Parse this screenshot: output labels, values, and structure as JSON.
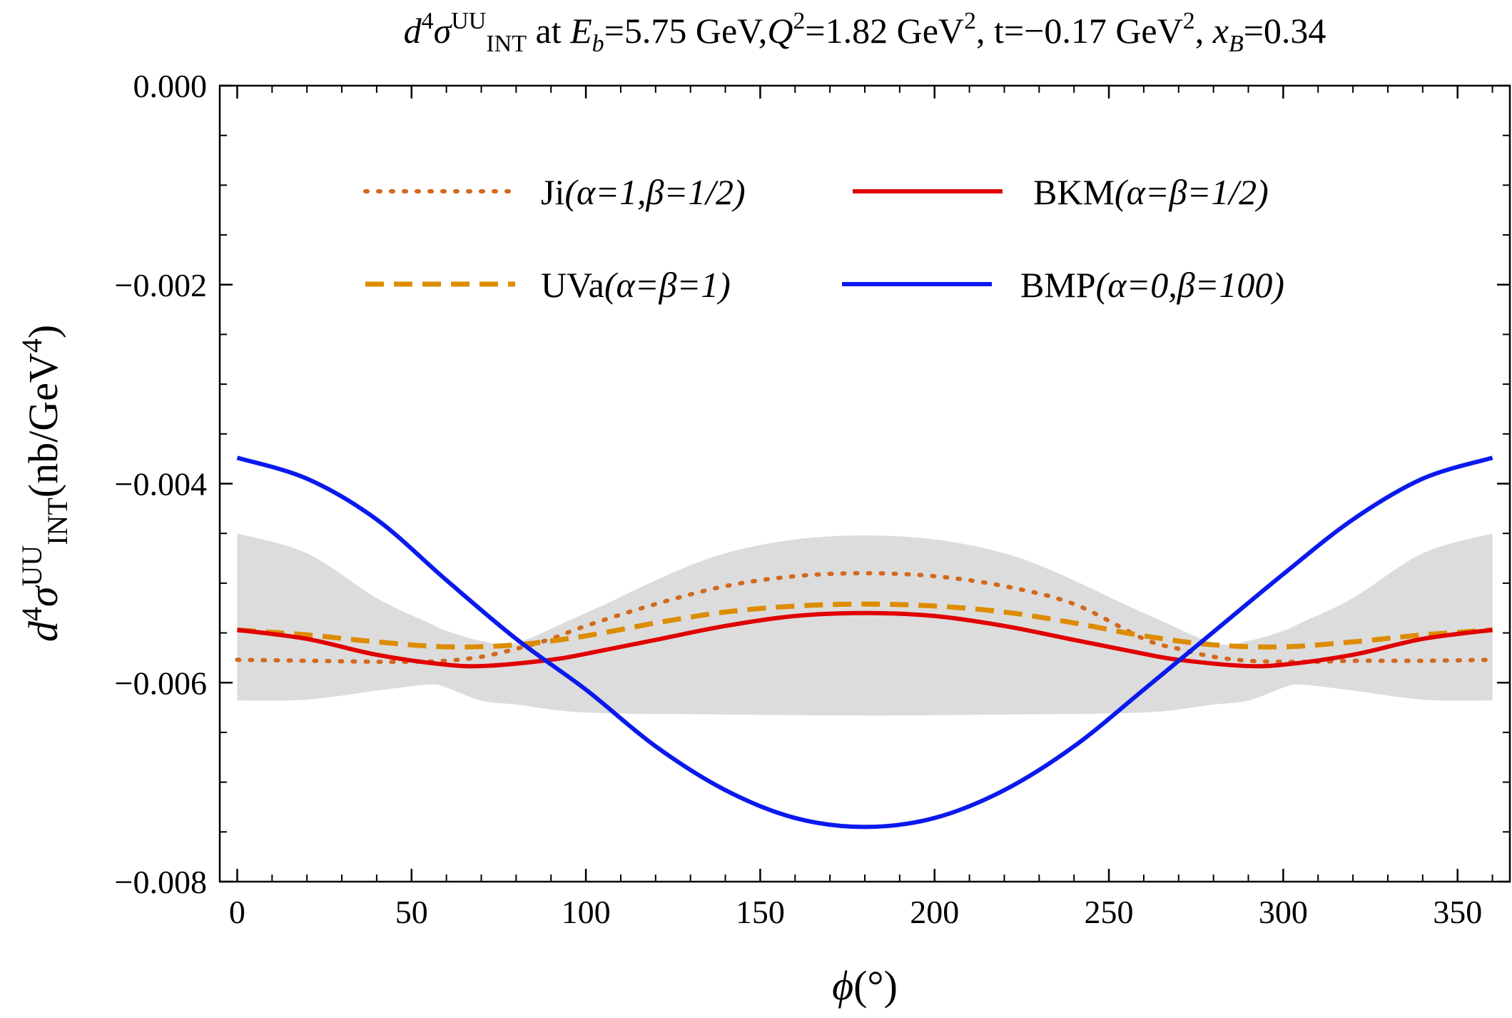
{
  "chart_data": {
    "type": "line",
    "title": {
      "prefix": "d",
      "prefix_sup": "4",
      "sigma": "σ",
      "sigma_sup": "UU",
      "sigma_sub": "INT",
      "text1": " at ",
      "eb_var": "E",
      "eb_sub": "b",
      "text2": "=5.75 GeV,",
      "q_var": "Q",
      "q_sup": "2",
      "text3": "=1.82 GeV",
      "gev_sup1": "2",
      "text4": ", t=−0.17 GeV",
      "gev_sup2": "2",
      "text5": ", ",
      "x_var": "x",
      "x_sub": "B",
      "text6": "=0.34"
    },
    "xlabel": {
      "symbol": "ϕ",
      "unit": "(°)"
    },
    "ylabel": {
      "prefix": "d",
      "prefix_sup": "4",
      "sigma": "σ",
      "sigma_sup": "UU",
      "sigma_sub": "INT",
      "unit": "(nb/GeV",
      "unit_sup": "4",
      "unit_close": ")"
    },
    "xlim": [
      -5,
      365
    ],
    "ylim": [
      -0.008,
      0
    ],
    "xticks": [
      0,
      50,
      100,
      150,
      200,
      250,
      300,
      350
    ],
    "xtick_labels": [
      "0",
      "50",
      "100",
      "150",
      "200",
      "250",
      "300",
      "350"
    ],
    "yticks": [
      0,
      -0.002,
      -0.004,
      -0.006,
      -0.008
    ],
    "ytick_labels": [
      "0.000",
      "−0.002",
      "−0.004",
      "−0.006",
      "−0.008"
    ],
    "band": {
      "color": "#dcdcdc",
      "x": [
        0,
        20,
        40,
        55,
        60,
        70,
        80,
        100,
        140,
        180,
        220,
        260,
        280,
        290,
        300,
        305,
        320,
        340,
        360
      ],
      "upper": [
        -0.0045,
        -0.0047,
        -0.00515,
        -0.0054,
        -0.00548,
        -0.00558,
        -0.0056,
        -0.0053,
        -0.0047,
        -0.00452,
        -0.0047,
        -0.0053,
        -0.0056,
        -0.00558,
        -0.00548,
        -0.0054,
        -0.00515,
        -0.0047,
        -0.0045
      ],
      "lower": [
        -0.00618,
        -0.00617,
        -0.00608,
        -0.00602,
        -0.00605,
        -0.00618,
        -0.00622,
        -0.0063,
        -0.00632,
        -0.00633,
        -0.00632,
        -0.0063,
        -0.00622,
        -0.00618,
        -0.00605,
        -0.00602,
        -0.00608,
        -0.00617,
        -0.00618
      ]
    },
    "series": [
      {
        "name": "Ji",
        "params": "(α=1,β=1/2)",
        "color": "#d2691e",
        "dash": "dotted",
        "x": [
          0,
          20,
          40,
          50,
          60,
          70,
          80,
          90,
          100,
          120,
          140,
          160,
          180,
          200,
          220,
          240,
          260,
          270,
          280,
          290,
          300,
          310,
          320,
          340,
          360
        ],
        "y": [
          -0.00577,
          -0.00578,
          -0.00579,
          -0.00579,
          -0.00578,
          -0.00574,
          -0.00566,
          -0.00556,
          -0.00543,
          -0.00521,
          -0.00503,
          -0.00493,
          -0.0049,
          -0.00493,
          -0.00503,
          -0.00521,
          -0.00556,
          -0.00566,
          -0.00574,
          -0.00578,
          -0.00579,
          -0.00579,
          -0.00578,
          -0.00578,
          -0.00577
        ]
      },
      {
        "name": "UVa",
        "params": "(α=β=1)",
        "color": "#dd8c00",
        "dash": "dashed",
        "x": [
          0,
          20,
          40,
          60,
          80,
          100,
          120,
          140,
          160,
          180,
          200,
          220,
          240,
          260,
          280,
          300,
          320,
          340,
          360
        ],
        "y": [
          -0.00547,
          -0.00552,
          -0.00559,
          -0.00564,
          -0.00562,
          -0.00553,
          -0.0054,
          -0.00529,
          -0.00523,
          -0.00521,
          -0.00523,
          -0.00529,
          -0.0054,
          -0.00553,
          -0.00562,
          -0.00564,
          -0.00559,
          -0.00552,
          -0.00547
        ]
      },
      {
        "name": "BKM",
        "params": "(α=β=1/2)",
        "color": "#e00000",
        "dash": "solid",
        "x": [
          0,
          20,
          40,
          60,
          72,
          90,
          100,
          120,
          140,
          160,
          180,
          200,
          220,
          240,
          260,
          270,
          288,
          300,
          320,
          340,
          360
        ],
        "y": [
          -0.00547,
          -0.00556,
          -0.00572,
          -0.00582,
          -0.00583,
          -0.00577,
          -0.00571,
          -0.00557,
          -0.00543,
          -0.00533,
          -0.0053,
          -0.00533,
          -0.00543,
          -0.00557,
          -0.00571,
          -0.00577,
          -0.00583,
          -0.00582,
          -0.00572,
          -0.00556,
          -0.00547
        ]
      },
      {
        "name": "BMP",
        "params": "(α=0,β=100)",
        "color": "#0a1aee",
        "dash": "solid",
        "x": [
          0,
          20,
          40,
          60,
          80,
          100,
          120,
          140,
          160,
          180,
          200,
          220,
          240,
          260,
          280,
          300,
          320,
          340,
          360
        ],
        "y": [
          -0.00374,
          -0.00395,
          -0.00436,
          -0.00497,
          -0.00556,
          -0.00607,
          -0.00664,
          -0.00708,
          -0.00736,
          -0.00745,
          -0.00736,
          -0.00708,
          -0.00664,
          -0.00607,
          -0.00549,
          -0.00491,
          -0.00436,
          -0.00395,
          -0.00374
        ]
      }
    ],
    "legend": "top-center"
  }
}
